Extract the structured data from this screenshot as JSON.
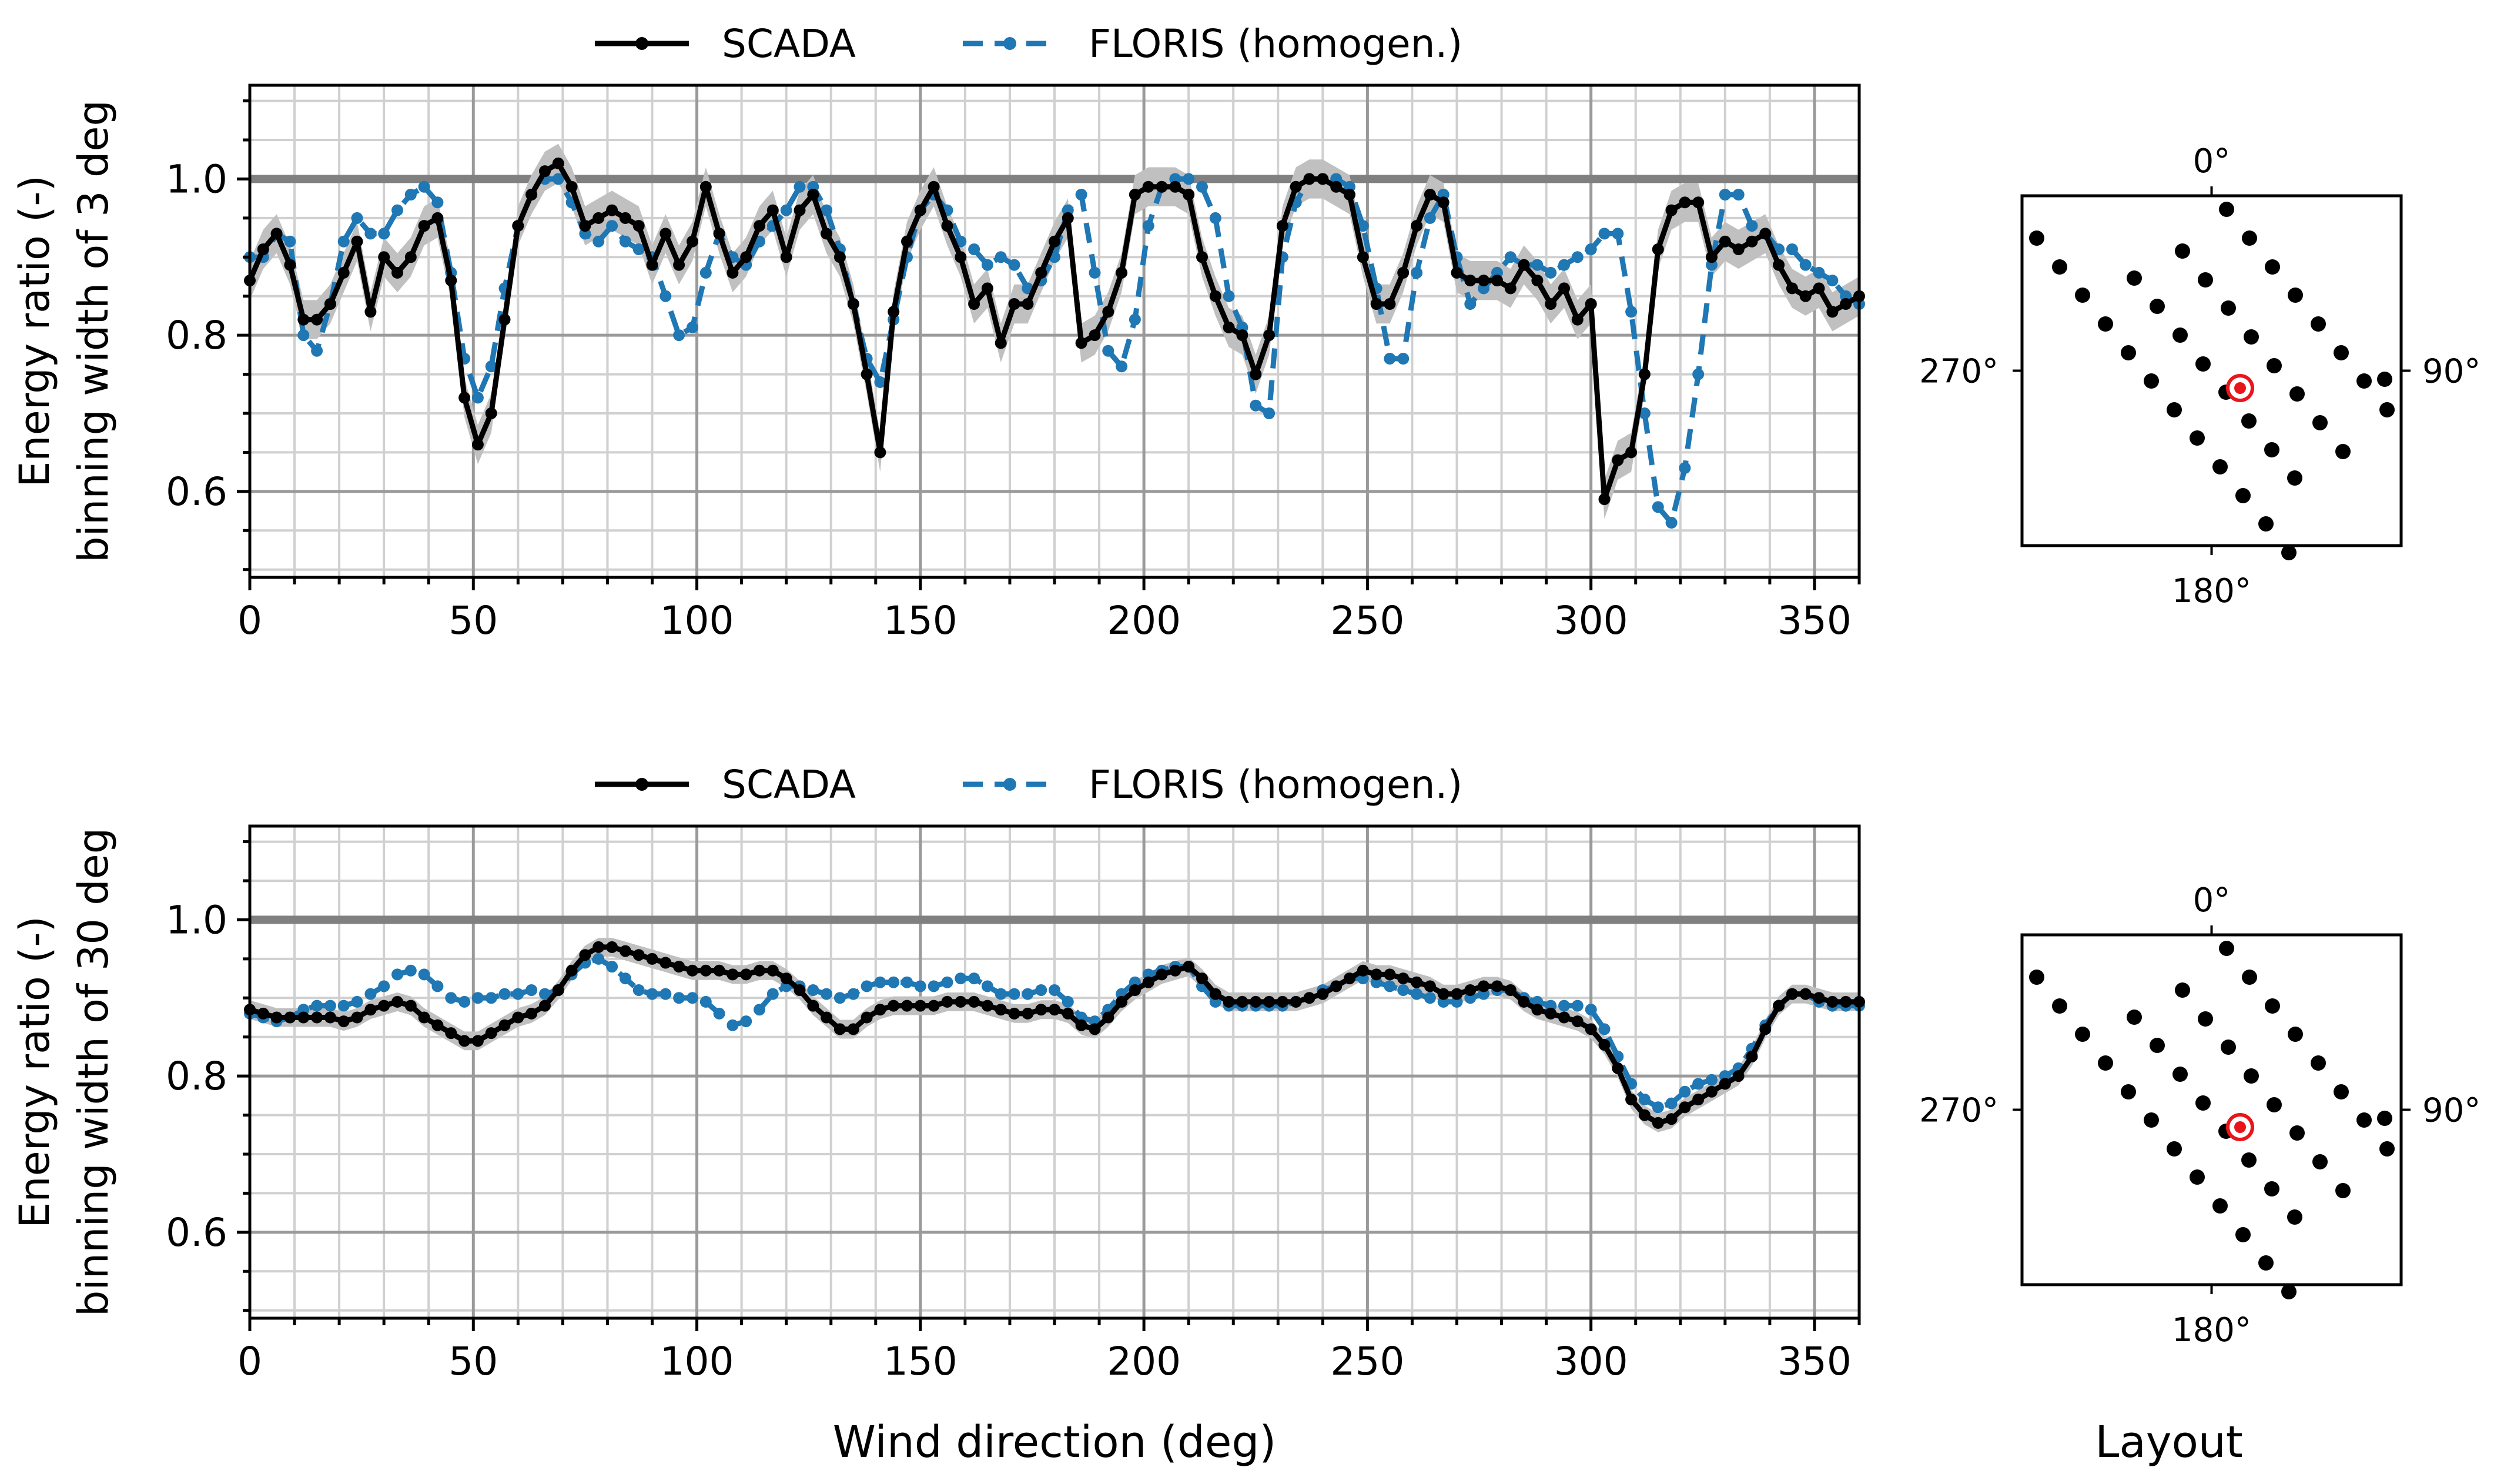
{
  "legend": {
    "scada": "SCADA",
    "floris": "FLORIS (homogen.)"
  },
  "colors": {
    "scada": "#000000",
    "floris": "#1f77b4",
    "band": "#c0c0c0",
    "reference_line": "#808080",
    "grid_major": "#9a9a9a",
    "grid_minor": "#d0d0d0",
    "highlight": "#e8151b"
  },
  "layout_panel": {
    "label": "Layout",
    "compass": {
      "north": "0°",
      "east": "90°",
      "south": "180°",
      "west": "270°"
    }
  },
  "chart_data": [
    {
      "type": "line",
      "ylabel_line1": "Energy ratio (-)",
      "ylabel_line2": "binning width of 3 deg",
      "xlabel": "",
      "xlim": [
        0,
        360
      ],
      "ylim": [
        0.49,
        1.12
      ],
      "xticks": [
        "0",
        "50",
        "100",
        "150",
        "200",
        "250",
        "300",
        "350"
      ],
      "yticks": [
        "0.6",
        "0.8",
        "1.0"
      ],
      "reference_y": 1.0,
      "x": [
        0,
        3,
        6,
        9,
        12,
        15,
        18,
        21,
        24,
        27,
        30,
        33,
        36,
        39,
        42,
        45,
        48,
        51,
        54,
        57,
        60,
        63,
        66,
        69,
        72,
        75,
        78,
        81,
        84,
        87,
        90,
        93,
        96,
        99,
        102,
        105,
        108,
        111,
        114,
        117,
        120,
        123,
        126,
        129,
        132,
        135,
        138,
        141,
        144,
        147,
        150,
        153,
        156,
        159,
        162,
        165,
        168,
        171,
        174,
        177,
        180,
        183,
        186,
        189,
        192,
        195,
        198,
        201,
        204,
        207,
        210,
        213,
        216,
        219,
        222,
        225,
        228,
        231,
        234,
        237,
        240,
        243,
        246,
        249,
        252,
        255,
        258,
        261,
        264,
        267,
        270,
        273,
        276,
        279,
        282,
        285,
        288,
        291,
        294,
        297,
        300,
        303,
        306,
        309,
        312,
        315,
        318,
        321,
        324,
        327,
        330,
        333,
        336,
        339,
        342,
        345,
        348,
        351,
        354,
        357,
        360
      ],
      "series": [
        {
          "name": "SCADA",
          "band": 0.025,
          "values": [
            0.87,
            0.91,
            0.93,
            0.89,
            0.82,
            0.82,
            0.84,
            0.88,
            0.92,
            0.83,
            0.9,
            0.88,
            0.9,
            0.94,
            0.95,
            0.87,
            0.72,
            0.66,
            0.7,
            0.82,
            0.94,
            0.98,
            1.01,
            1.02,
            0.99,
            0.94,
            0.95,
            0.96,
            0.95,
            0.94,
            0.89,
            0.93,
            0.89,
            0.92,
            0.99,
            0.93,
            0.88,
            0.9,
            0.94,
            0.96,
            0.9,
            0.96,
            0.98,
            0.93,
            0.9,
            0.84,
            0.75,
            0.65,
            0.83,
            0.92,
            0.96,
            0.99,
            0.94,
            0.9,
            0.84,
            0.86,
            0.79,
            0.84,
            0.84,
            0.88,
            0.92,
            0.95,
            0.79,
            0.8,
            0.83,
            0.88,
            0.98,
            0.99,
            0.99,
            0.99,
            0.98,
            0.9,
            0.85,
            0.81,
            0.8,
            0.75,
            0.8,
            0.94,
            0.99,
            1.0,
            1.0,
            0.99,
            0.98,
            0.9,
            0.84,
            0.84,
            0.88,
            0.94,
            0.98,
            0.97,
            0.88,
            0.87,
            0.87,
            0.87,
            0.86,
            0.89,
            0.87,
            0.84,
            0.86,
            0.82,
            0.84,
            0.59,
            0.64,
            0.65,
            0.75,
            0.91,
            0.96,
            0.97,
            0.97,
            0.9,
            0.92,
            0.91,
            0.92,
            0.93,
            0.89,
            0.86,
            0.85,
            0.86,
            0.83,
            0.84,
            0.85
          ],
          "line": "solid"
        },
        {
          "name": "FLORIS (homogen.)",
          "values": [
            0.9,
            0.9,
            0.93,
            0.92,
            0.8,
            0.78,
            0.84,
            0.92,
            0.95,
            0.93,
            0.93,
            0.96,
            0.98,
            0.99,
            0.97,
            0.88,
            0.77,
            0.72,
            0.76,
            0.86,
            0.94,
            0.98,
            1.0,
            1.0,
            0.97,
            0.93,
            0.92,
            0.94,
            0.92,
            0.91,
            0.9,
            0.85,
            0.8,
            0.81,
            0.88,
            0.93,
            0.9,
            0.89,
            0.92,
            0.94,
            0.96,
            0.99,
            0.99,
            0.96,
            0.91,
            0.84,
            0.77,
            0.74,
            0.82,
            0.9,
            0.96,
            0.98,
            0.96,
            0.92,
            0.91,
            0.89,
            0.9,
            0.89,
            0.86,
            0.87,
            0.9,
            0.96,
            0.98,
            0.88,
            0.78,
            0.76,
            0.82,
            0.94,
            0.99,
            1.0,
            1.0,
            0.99,
            0.95,
            0.85,
            0.81,
            0.71,
            0.7,
            0.9,
            0.97,
            1.0,
            1.0,
            1.0,
            0.99,
            0.94,
            0.86,
            0.77,
            0.77,
            0.88,
            0.95,
            0.98,
            0.9,
            0.84,
            0.86,
            0.88,
            0.9,
            0.89,
            0.89,
            0.88,
            0.89,
            0.9,
            0.91,
            0.93,
            0.93,
            0.83,
            0.7,
            0.58,
            0.56,
            0.63,
            0.75,
            0.89,
            0.98,
            0.98,
            0.94,
            0.93,
            0.91,
            0.91,
            0.89,
            0.88,
            0.87,
            0.85,
            0.84
          ],
          "line": "dashed"
        }
      ]
    },
    {
      "type": "line",
      "ylabel_line1": "Energy ratio (-)",
      "ylabel_line2": "binning width of 30 deg",
      "xlabel": "Wind direction (deg)",
      "xlim": [
        0,
        360
      ],
      "ylim": [
        0.49,
        1.12
      ],
      "xticks": [
        "0",
        "50",
        "100",
        "150",
        "200",
        "250",
        "300",
        "350"
      ],
      "yticks": [
        "0.6",
        "0.8",
        "1.0"
      ],
      "reference_y": 1.0,
      "x": [
        0,
        3,
        6,
        9,
        12,
        15,
        18,
        21,
        24,
        27,
        30,
        33,
        36,
        39,
        42,
        45,
        48,
        51,
        54,
        57,
        60,
        63,
        66,
        69,
        72,
        75,
        78,
        81,
        84,
        87,
        90,
        93,
        96,
        99,
        102,
        105,
        108,
        111,
        114,
        117,
        120,
        123,
        126,
        129,
        132,
        135,
        138,
        141,
        144,
        147,
        150,
        153,
        156,
        159,
        162,
        165,
        168,
        171,
        174,
        177,
        180,
        183,
        186,
        189,
        192,
        195,
        198,
        201,
        204,
        207,
        210,
        213,
        216,
        219,
        222,
        225,
        228,
        231,
        234,
        237,
        240,
        243,
        246,
        249,
        252,
        255,
        258,
        261,
        264,
        267,
        270,
        273,
        276,
        279,
        282,
        285,
        288,
        291,
        294,
        297,
        300,
        303,
        306,
        309,
        312,
        315,
        318,
        321,
        324,
        327,
        330,
        333,
        336,
        339,
        342,
        345,
        348,
        351,
        354,
        357,
        360
      ],
      "series": [
        {
          "name": "SCADA",
          "band": 0.012,
          "values": [
            0.885,
            0.88,
            0.875,
            0.875,
            0.875,
            0.875,
            0.875,
            0.87,
            0.875,
            0.885,
            0.89,
            0.895,
            0.89,
            0.875,
            0.865,
            0.855,
            0.845,
            0.845,
            0.855,
            0.865,
            0.875,
            0.88,
            0.89,
            0.91,
            0.935,
            0.955,
            0.965,
            0.965,
            0.96,
            0.955,
            0.95,
            0.945,
            0.94,
            0.935,
            0.935,
            0.935,
            0.93,
            0.93,
            0.935,
            0.935,
            0.925,
            0.91,
            0.89,
            0.875,
            0.86,
            0.86,
            0.875,
            0.885,
            0.89,
            0.89,
            0.89,
            0.89,
            0.895,
            0.895,
            0.895,
            0.89,
            0.885,
            0.88,
            0.88,
            0.885,
            0.885,
            0.88,
            0.865,
            0.86,
            0.875,
            0.895,
            0.91,
            0.92,
            0.93,
            0.935,
            0.94,
            0.925,
            0.905,
            0.895,
            0.895,
            0.895,
            0.895,
            0.895,
            0.895,
            0.9,
            0.905,
            0.915,
            0.925,
            0.935,
            0.93,
            0.93,
            0.925,
            0.92,
            0.915,
            0.905,
            0.905,
            0.91,
            0.915,
            0.915,
            0.91,
            0.895,
            0.885,
            0.88,
            0.875,
            0.87,
            0.86,
            0.84,
            0.81,
            0.77,
            0.75,
            0.74,
            0.745,
            0.76,
            0.77,
            0.78,
            0.79,
            0.8,
            0.825,
            0.86,
            0.89,
            0.905,
            0.905,
            0.9,
            0.895,
            0.895,
            0.895
          ],
          "line": "solid"
        },
        {
          "name": "FLORIS (homogen.)",
          "values": [
            0.88,
            0.875,
            0.87,
            0.875,
            0.885,
            0.89,
            0.89,
            0.89,
            0.895,
            0.905,
            0.915,
            0.93,
            0.935,
            0.93,
            0.915,
            0.9,
            0.895,
            0.9,
            0.9,
            0.905,
            0.905,
            0.91,
            0.905,
            0.91,
            0.93,
            0.945,
            0.95,
            0.94,
            0.925,
            0.91,
            0.905,
            0.905,
            0.9,
            0.9,
            0.895,
            0.88,
            0.865,
            0.87,
            0.885,
            0.905,
            0.915,
            0.915,
            0.91,
            0.905,
            0.9,
            0.905,
            0.915,
            0.92,
            0.92,
            0.92,
            0.915,
            0.915,
            0.92,
            0.925,
            0.925,
            0.915,
            0.905,
            0.905,
            0.905,
            0.91,
            0.91,
            0.895,
            0.875,
            0.87,
            0.885,
            0.905,
            0.92,
            0.93,
            0.935,
            0.94,
            0.94,
            0.915,
            0.895,
            0.89,
            0.89,
            0.89,
            0.89,
            0.89,
            0.895,
            0.9,
            0.91,
            0.915,
            0.925,
            0.925,
            0.92,
            0.915,
            0.91,
            0.905,
            0.9,
            0.895,
            0.895,
            0.9,
            0.905,
            0.91,
            0.91,
            0.9,
            0.895,
            0.89,
            0.89,
            0.89,
            0.885,
            0.86,
            0.825,
            0.79,
            0.77,
            0.76,
            0.765,
            0.78,
            0.79,
            0.795,
            0.8,
            0.81,
            0.835,
            0.865,
            0.89,
            0.905,
            0.905,
            0.895,
            0.89,
            0.89,
            0.89
          ],
          "line": "dashed"
        }
      ]
    }
  ]
}
